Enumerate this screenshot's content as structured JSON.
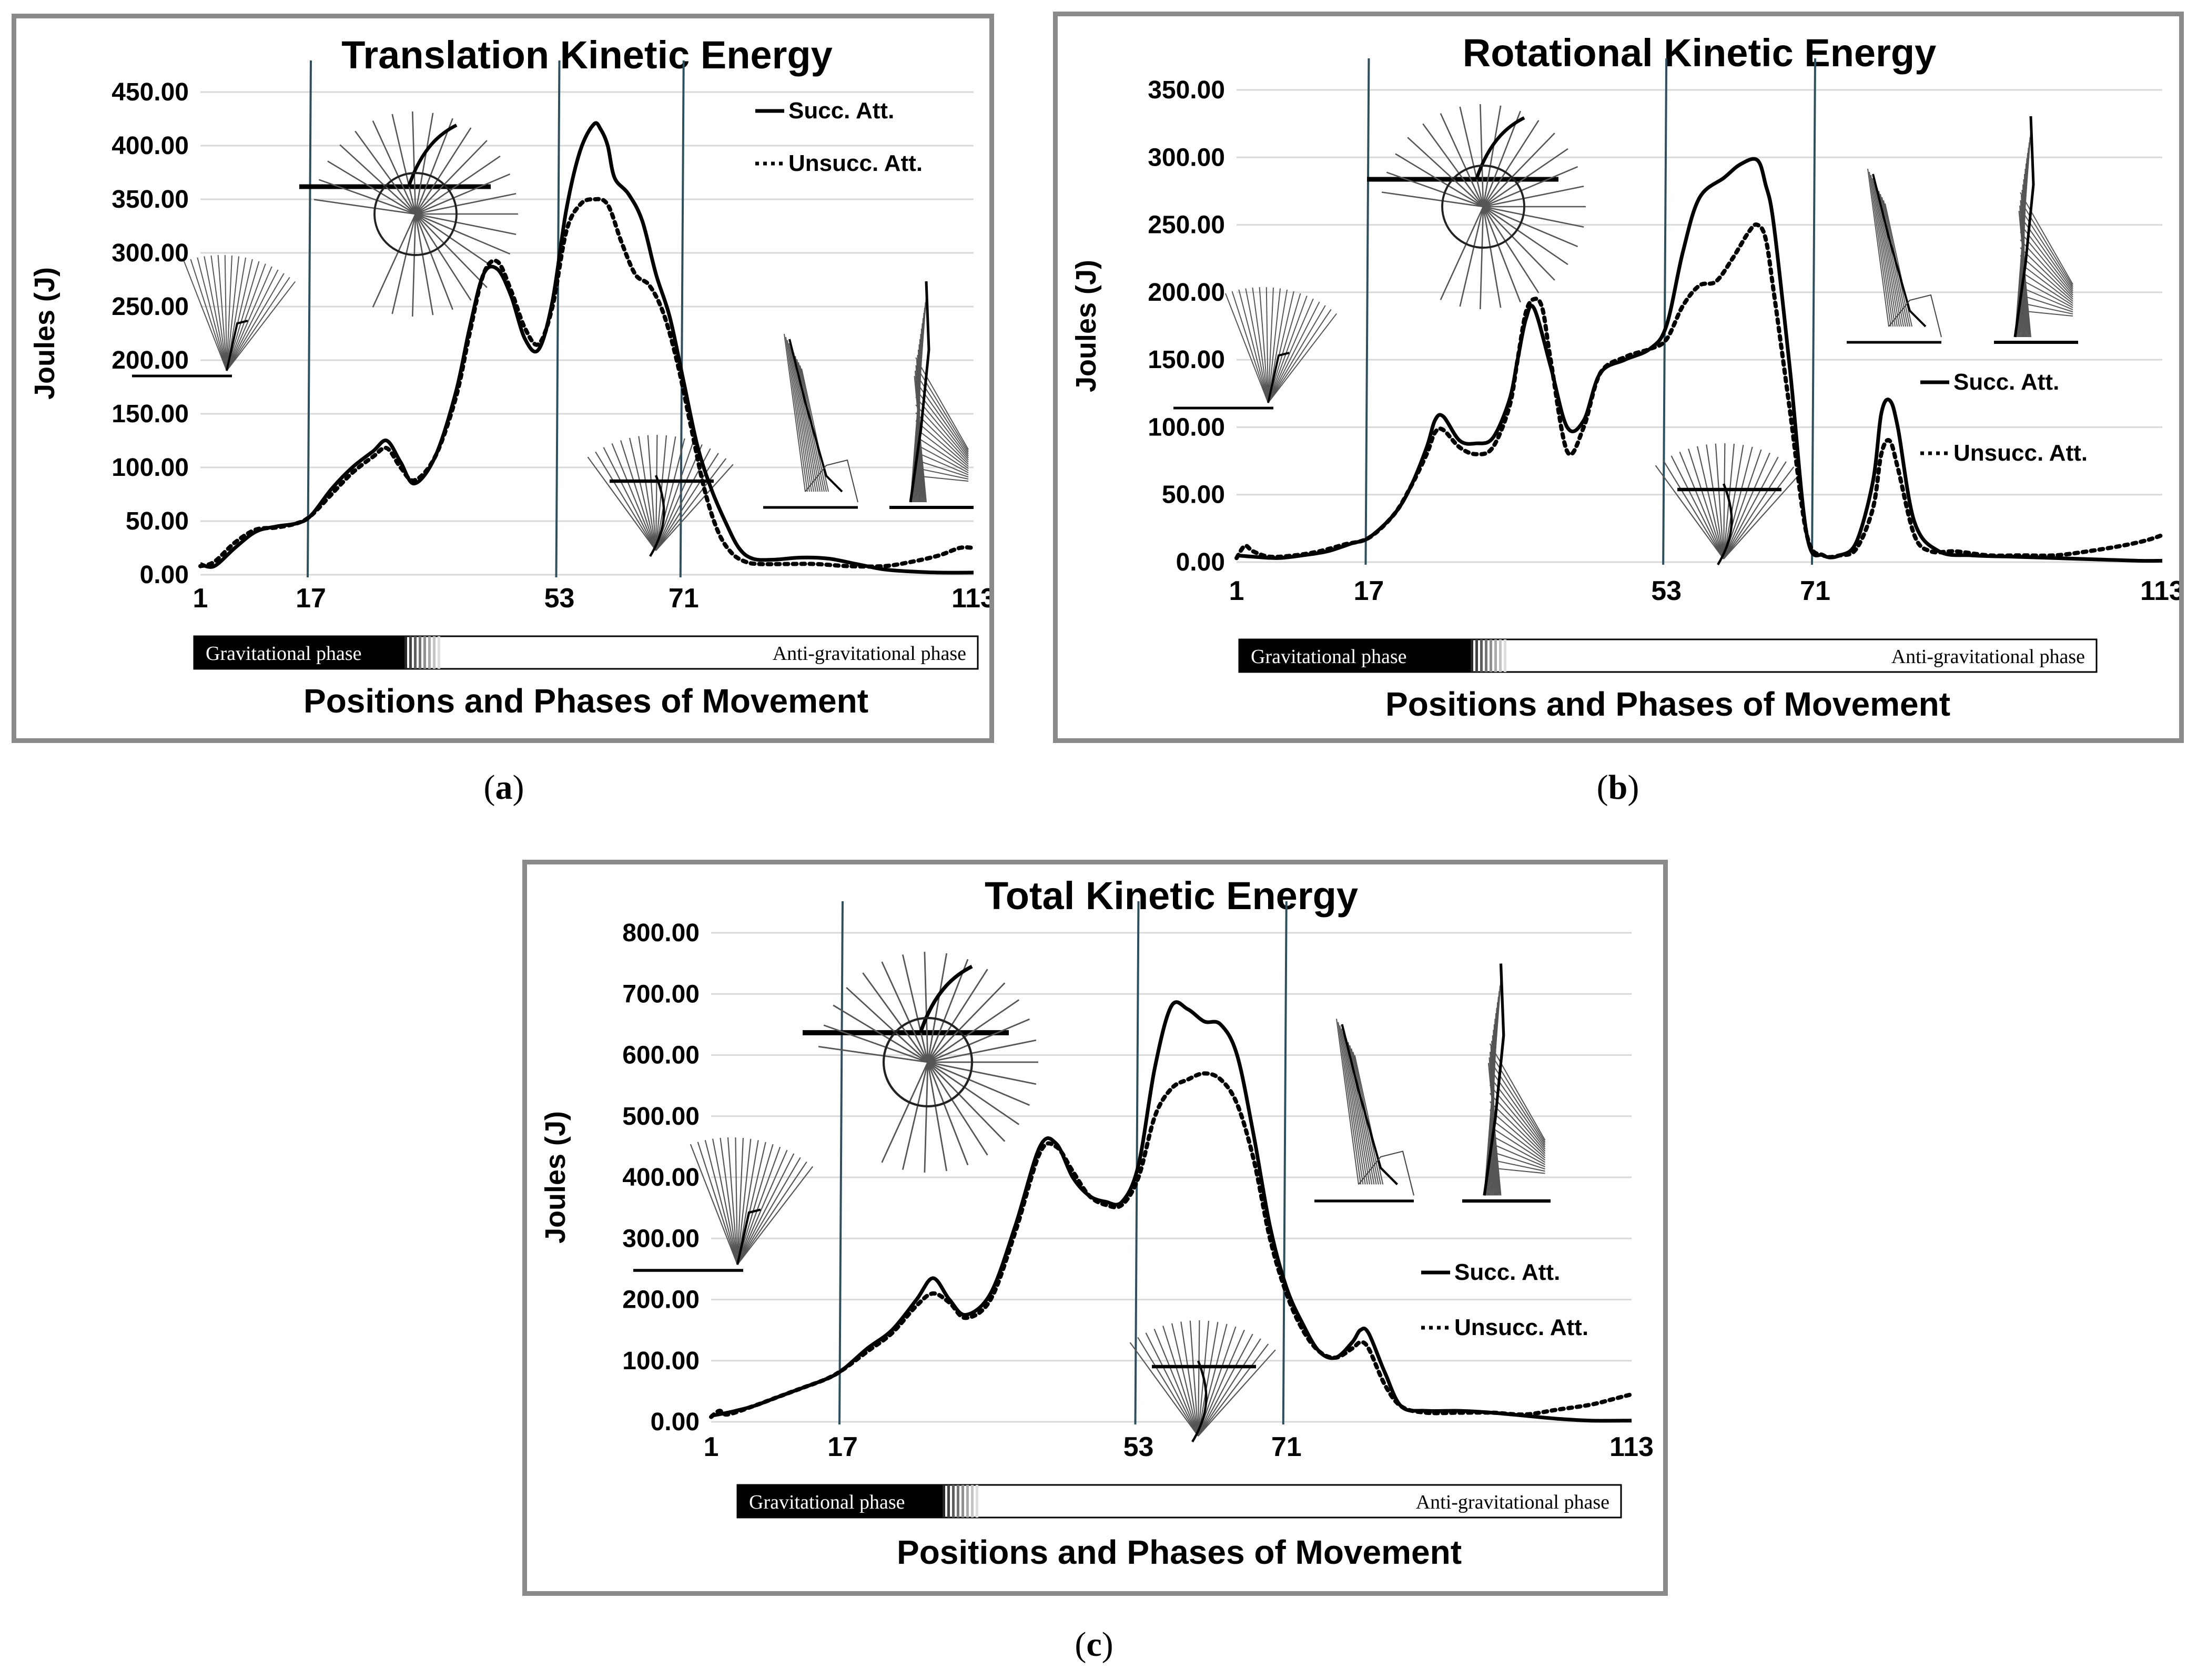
{
  "captions": [
    {
      "open": "(",
      "letter": "a",
      "close": ")"
    },
    {
      "open": "(",
      "letter": "b",
      "close": ")"
    },
    {
      "open": "(",
      "letter": "c",
      "close": ")"
    }
  ],
  "colors": {
    "frame": "#8a8a8a",
    "grid": "#d9d9d9",
    "series_line": "#000000",
    "divider": "#2f4f5f",
    "phase_bar_dark": "#000000",
    "figure_stroke": "#555555"
  },
  "chart_data": [
    {
      "type": "line",
      "title": "Translation Kinetic Energy",
      "xlabel": "Positions and Phases of Movement",
      "ylabel": "Joules (J)",
      "ylim": [
        0,
        450
      ],
      "xlim": [
        1,
        113
      ],
      "yticks": [
        "0.00",
        "50.00",
        "100.00",
        "150.00",
        "200.00",
        "250.00",
        "300.00",
        "350.00",
        "400.00",
        "450.00"
      ],
      "ytick_values": [
        0,
        50,
        100,
        150,
        200,
        250,
        300,
        350,
        400,
        450
      ],
      "xticks": [
        "1",
        "17",
        "53",
        "71",
        "113"
      ],
      "xtick_values": [
        1,
        17,
        53,
        71,
        113
      ],
      "dividers": [
        17,
        53,
        71
      ],
      "grid": true,
      "legend_position": "top-right",
      "phases": {
        "gravitational": "Gravitational phase",
        "antigravitational": "Anti-gravitational phase"
      },
      "series": [
        {
          "name": "Succ. Att.",
          "style": "solid",
          "x": [
            1,
            3,
            6,
            9,
            12,
            15,
            17,
            20,
            23,
            26,
            28,
            30,
            32,
            35,
            38,
            40,
            42,
            44,
            46,
            48,
            50,
            52,
            54,
            56,
            58,
            59,
            60,
            61,
            63,
            65,
            67,
            69,
            71,
            73,
            75,
            77,
            79,
            81,
            84,
            88,
            92,
            96,
            100,
            104,
            108,
            113
          ],
          "y": [
            10,
            8,
            25,
            40,
            45,
            48,
            55,
            80,
            100,
            115,
            125,
            105,
            85,
            110,
            170,
            230,
            280,
            285,
            260,
            220,
            210,
            255,
            340,
            395,
            420,
            415,
            400,
            370,
            355,
            330,
            280,
            240,
            180,
            120,
            80,
            50,
            25,
            15,
            14,
            16,
            15,
            10,
            5,
            3,
            2,
            2
          ]
        },
        {
          "name": "Unsucc. Att.",
          "style": "dotted",
          "x": [
            1,
            3,
            6,
            9,
            12,
            15,
            17,
            20,
            23,
            26,
            28,
            30,
            32,
            35,
            38,
            40,
            42,
            44,
            46,
            48,
            50,
            52,
            54,
            56,
            58,
            60,
            62,
            64,
            66,
            68,
            70,
            72,
            74,
            76,
            78,
            80,
            82,
            86,
            90,
            95,
            100,
            104,
            108,
            111,
            113
          ],
          "y": [
            8,
            12,
            30,
            42,
            44,
            48,
            55,
            75,
            95,
            110,
            118,
            100,
            88,
            110,
            165,
            225,
            280,
            292,
            265,
            230,
            215,
            250,
            320,
            345,
            350,
            345,
            310,
            280,
            270,
            245,
            200,
            140,
            80,
            40,
            20,
            12,
            10,
            10,
            10,
            8,
            8,
            12,
            18,
            25,
            25
          ]
        }
      ]
    },
    {
      "type": "line",
      "title": "Rotational Kinetic Energy",
      "xlabel": "Positions and Phases of Movement",
      "ylabel": "Joules (J)",
      "ylim": [
        0,
        350
      ],
      "xlim": [
        1,
        113
      ],
      "yticks": [
        "0.00",
        "50.00",
        "100.00",
        "150.00",
        "200.00",
        "250.00",
        "300.00",
        "350.00"
      ],
      "ytick_values": [
        0,
        50,
        100,
        150,
        200,
        250,
        300,
        350
      ],
      "xticks": [
        "1",
        "17",
        "53",
        "71",
        "113"
      ],
      "xtick_values": [
        1,
        17,
        53,
        71,
        113
      ],
      "dividers": [
        17,
        53,
        71
      ],
      "grid": true,
      "legend_position": "right",
      "phases": {
        "gravitational": "Gravitational phase",
        "antigravitational": "Anti-gravitational phase"
      },
      "series": [
        {
          "name": "Succ. Att.",
          "style": "solid",
          "x": [
            1,
            3,
            6,
            9,
            12,
            15,
            17,
            20,
            22,
            24,
            25,
            26,
            28,
            30,
            32,
            34,
            35,
            36,
            37,
            39,
            41,
            43,
            45,
            48,
            51,
            53,
            55,
            57,
            60,
            62,
            64,
            65,
            66,
            68,
            70,
            72,
            74,
            76,
            78,
            79,
            80,
            81,
            83,
            86,
            90,
            95,
            100,
            105,
            110,
            113
          ],
          "y": [
            5,
            4,
            3,
            5,
            8,
            14,
            18,
            35,
            55,
            85,
            105,
            108,
            90,
            88,
            92,
            120,
            150,
            180,
            188,
            145,
            100,
            105,
            140,
            150,
            158,
            175,
            230,
            270,
            285,
            295,
            298,
            280,
            250,
            140,
            20,
            5,
            5,
            15,
            60,
            110,
            120,
            100,
            30,
            8,
            5,
            4,
            3,
            2,
            1,
            1
          ]
        },
        {
          "name": "Unsucc. Att.",
          "style": "dotted",
          "x": [
            1,
            2,
            3,
            5,
            8,
            11,
            14,
            17,
            20,
            22,
            24,
            25,
            26,
            28,
            30,
            32,
            34,
            35,
            36,
            37,
            38,
            39,
            41,
            43,
            45,
            48,
            51,
            53,
            55,
            57,
            59,
            61,
            63,
            64,
            65,
            66,
            68,
            70,
            72,
            74,
            76,
            78,
            79,
            80,
            81,
            83,
            85,
            88,
            92,
            96,
            100,
            104,
            108,
            111,
            113
          ],
          "y": [
            3,
            12,
            8,
            4,
            5,
            8,
            13,
            18,
            35,
            55,
            80,
            96,
            98,
            85,
            80,
            85,
            115,
            150,
            185,
            195,
            188,
            150,
            82,
            100,
            140,
            152,
            158,
            165,
            190,
            205,
            208,
            225,
            245,
            250,
            240,
            200,
            110,
            20,
            5,
            5,
            10,
            40,
            80,
            90,
            70,
            20,
            8,
            8,
            5,
            5,
            5,
            8,
            12,
            16,
            20
          ]
        }
      ]
    },
    {
      "type": "line",
      "title": "Total Kinetic Energy",
      "xlabel": "Positions and Phases of Movement",
      "ylabel": "Joules (J)",
      "ylim": [
        0,
        800
      ],
      "xlim": [
        1,
        113
      ],
      "yticks": [
        "0.00",
        "100.00",
        "200.00",
        "300.00",
        "400.00",
        "500.00",
        "600.00",
        "700.00",
        "800.00"
      ],
      "ytick_values": [
        0,
        100,
        200,
        300,
        400,
        500,
        600,
        700,
        800
      ],
      "xticks": [
        "1",
        "17",
        "53",
        "71",
        "113"
      ],
      "xtick_values": [
        1,
        17,
        53,
        71,
        113
      ],
      "dividers": [
        17,
        53,
        71
      ],
      "grid": true,
      "legend_position": "right",
      "phases": {
        "gravitational": "Gravitational phase",
        "antigravitational": "Anti-gravitational phase"
      },
      "series": [
        {
          "name": "Succ. Att.",
          "style": "solid",
          "x": [
            1,
            3,
            6,
            9,
            12,
            15,
            17,
            20,
            23,
            26,
            28,
            30,
            32,
            35,
            38,
            41,
            43,
            45,
            47,
            49,
            51,
            53,
            55,
            57,
            59,
            61,
            63,
            65,
            67,
            69,
            71,
            73,
            75,
            77,
            79,
            80,
            81,
            83,
            85,
            88,
            92,
            96,
            100,
            104,
            108,
            113
          ],
          "y": [
            10,
            15,
            25,
            40,
            55,
            70,
            85,
            120,
            150,
            200,
            235,
            200,
            175,
            210,
            320,
            450,
            455,
            400,
            370,
            360,
            360,
            420,
            580,
            680,
            675,
            655,
            650,
            600,
            470,
            320,
            220,
            160,
            115,
            105,
            130,
            150,
            145,
            80,
            25,
            18,
            18,
            15,
            10,
            5,
            2,
            2
          ]
        },
        {
          "name": "Unsucc. Att.",
          "style": "dotted",
          "x": [
            1,
            2,
            3,
            6,
            9,
            12,
            15,
            17,
            20,
            23,
            26,
            28,
            30,
            32,
            35,
            38,
            41,
            43,
            45,
            47,
            49,
            51,
            53,
            55,
            57,
            59,
            61,
            63,
            65,
            67,
            69,
            71,
            73,
            75,
            77,
            79,
            80,
            81,
            83,
            85,
            88,
            92,
            96,
            100,
            104,
            108,
            111,
            113
          ],
          "y": [
            8,
            18,
            12,
            25,
            40,
            55,
            70,
            85,
            115,
            145,
            190,
            210,
            195,
            170,
            200,
            310,
            440,
            450,
            410,
            370,
            355,
            355,
            400,
            500,
            545,
            560,
            570,
            560,
            520,
            430,
            300,
            210,
            150,
            115,
            105,
            120,
            130,
            120,
            60,
            25,
            15,
            15,
            15,
            12,
            20,
            28,
            38,
            45
          ]
        }
      ]
    }
  ]
}
